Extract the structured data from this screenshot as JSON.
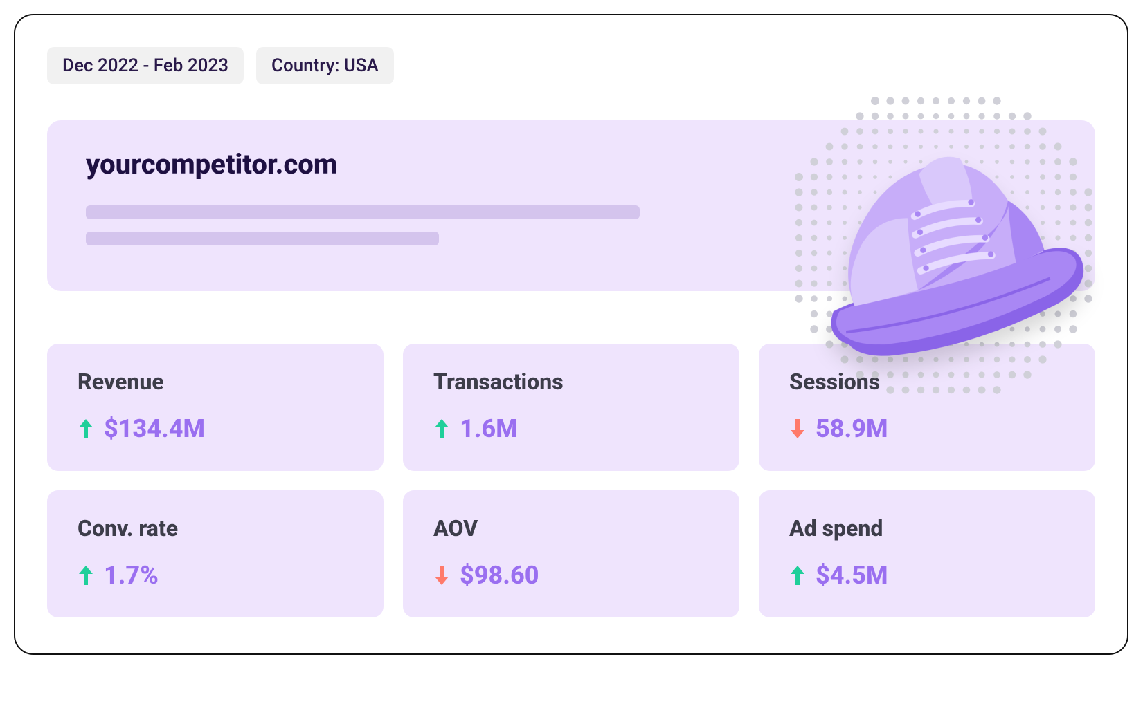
{
  "colors": {
    "card_bg": "#efe4fd",
    "title_color": "#1e1042",
    "label_color": "#3d3d4a",
    "value_color": "#9a6ff0",
    "up_color": "#1fcf9a",
    "down_color": "#ff7a6b",
    "filter_bg": "#f1f1f1",
    "filter_text": "#2a1a4a",
    "skeleton": "#d4c4ed",
    "shoe_light": "#c7adf9",
    "shoe_mid": "#a987f4",
    "shoe_dark": "#8a64e8",
    "halftone": "#d0d0d8"
  },
  "filters": {
    "date_range": "Dec 2022 - Feb 2023",
    "country": "Country: USA"
  },
  "hero": {
    "domain": "yourcompetitor.com"
  },
  "metrics": [
    {
      "key": "revenue",
      "label": "Revenue",
      "value": "$134.4M",
      "trend": "up"
    },
    {
      "key": "transactions",
      "label": "Transactions",
      "value": "1.6M",
      "trend": "up"
    },
    {
      "key": "sessions",
      "label": "Sessions",
      "value": "58.9M",
      "trend": "down"
    },
    {
      "key": "conv_rate",
      "label": "Conv. rate",
      "value": "1.7%",
      "trend": "up"
    },
    {
      "key": "aov",
      "label": "AOV",
      "value": "$98.60",
      "trend": "down"
    },
    {
      "key": "ad_spend",
      "label": "Ad spend",
      "value": "$4.5M",
      "trend": "up"
    }
  ]
}
